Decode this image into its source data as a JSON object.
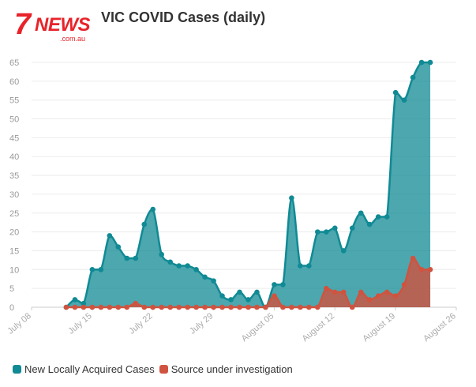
{
  "brand": {
    "logo_text_seven": "7",
    "logo_text_news": "NEWS",
    "logo_text_domain": ".com.au",
    "color": "#e8232a"
  },
  "chart_data": {
    "type": "area",
    "title": "VIC COVID Cases (daily)",
    "xlabel": "",
    "ylabel": "",
    "ylim": [
      0,
      65
    ],
    "yticks": [
      0,
      5,
      10,
      15,
      20,
      25,
      30,
      35,
      40,
      45,
      50,
      55,
      60,
      65
    ],
    "xlim": [
      "2021-07-08",
      "2021-08-26"
    ],
    "xticks": [
      {
        "date": "2021-07-08",
        "label": "July 08"
      },
      {
        "date": "2021-07-15",
        "label": "July 15"
      },
      {
        "date": "2021-07-22",
        "label": "July 22"
      },
      {
        "date": "2021-07-29",
        "label": "July 29"
      },
      {
        "date": "2021-08-05",
        "label": "August 05"
      },
      {
        "date": "2021-08-12",
        "label": "August 12"
      },
      {
        "date": "2021-08-19",
        "label": "August 19"
      },
      {
        "date": "2021-08-26",
        "label": "August 26"
      }
    ],
    "grid": true,
    "legend_position": "bottom-left",
    "x": [
      "2021-07-12",
      "2021-07-13",
      "2021-07-14",
      "2021-07-15",
      "2021-07-16",
      "2021-07-17",
      "2021-07-18",
      "2021-07-19",
      "2021-07-20",
      "2021-07-21",
      "2021-07-22",
      "2021-07-23",
      "2021-07-24",
      "2021-07-25",
      "2021-07-26",
      "2021-07-27",
      "2021-07-28",
      "2021-07-29",
      "2021-07-30",
      "2021-07-31",
      "2021-08-01",
      "2021-08-02",
      "2021-08-03",
      "2021-08-04",
      "2021-08-05",
      "2021-08-06",
      "2021-08-07",
      "2021-08-08",
      "2021-08-09",
      "2021-08-10",
      "2021-08-11",
      "2021-08-12",
      "2021-08-13",
      "2021-08-14",
      "2021-08-15",
      "2021-08-16",
      "2021-08-17",
      "2021-08-18",
      "2021-08-19",
      "2021-08-20",
      "2021-08-21",
      "2021-08-22",
      "2021-08-23"
    ],
    "series": [
      {
        "name": "New Locally Acquired Cases",
        "color": "#108a94",
        "values": [
          0,
          2,
          1,
          10,
          10,
          19,
          16,
          13,
          13,
          22,
          26,
          14,
          12,
          11,
          11,
          10,
          8,
          7,
          3,
          2,
          4,
          2,
          4,
          0,
          6,
          6,
          29,
          11,
          11,
          20,
          20,
          21,
          15,
          21,
          25,
          22,
          24,
          24,
          57,
          55,
          61,
          65,
          65
        ]
      },
      {
        "name": "Source under investigation",
        "color": "#d0533f",
        "values": [
          0,
          0,
          0,
          0,
          0,
          0,
          0,
          0,
          1,
          0,
          0,
          0,
          0,
          0,
          0,
          0,
          0,
          0,
          0,
          0,
          0,
          0,
          0,
          0,
          3,
          0,
          0,
          0,
          0,
          0,
          5,
          4,
          4,
          0,
          4,
          2,
          3,
          4,
          3,
          6,
          13,
          10,
          10
        ]
      }
    ]
  }
}
